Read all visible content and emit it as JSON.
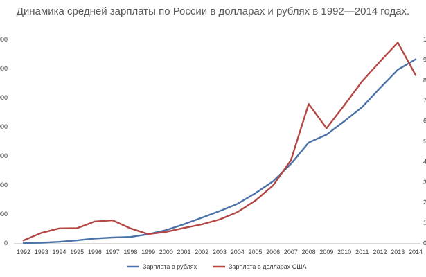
{
  "chart_data": {
    "type": "line",
    "title": "Динамика средней зарплаты по России в долларах и рублях в 1992—2014 годах.",
    "categories": [
      "1992",
      "1993",
      "1994",
      "1995",
      "1996",
      "1997",
      "1998",
      "1999",
      "2000",
      "2001",
      "2002",
      "2003",
      "2004",
      "2005",
      "2006",
      "2007",
      "2008",
      "2009",
      "2010",
      "2011",
      "2012",
      "2013",
      "2014"
    ],
    "series": [
      {
        "name": "Зарплата в рублях",
        "axis": "left",
        "color": "#4a72a8",
        "values": [
          8,
          58,
          220,
          470,
          790,
          950,
          1051,
          1523,
          2223,
          3240,
          4360,
          5499,
          6740,
          8555,
          10634,
          13593,
          17290,
          18638,
          20952,
          23369,
          26629,
          29792,
          31600
        ]
      },
      {
        "name": "Зарплата в долларах США",
        "axis": "right",
        "color": "#b34744",
        "values": [
          13,
          50,
          72,
          73,
          106,
          112,
          72,
          44,
          55,
          74,
          92,
          116,
          152,
          208,
          283,
          406,
          683,
          564,
          677,
          795,
          891,
          985,
          825
        ]
      }
    ],
    "y_left": {
      "ylim": [
        0,
        35000
      ],
      "tick_step": 5000
    },
    "y_right": {
      "ylim": [
        0,
        1000
      ],
      "tick_step": 100
    },
    "grid": false,
    "legend_position": "bottom"
  }
}
